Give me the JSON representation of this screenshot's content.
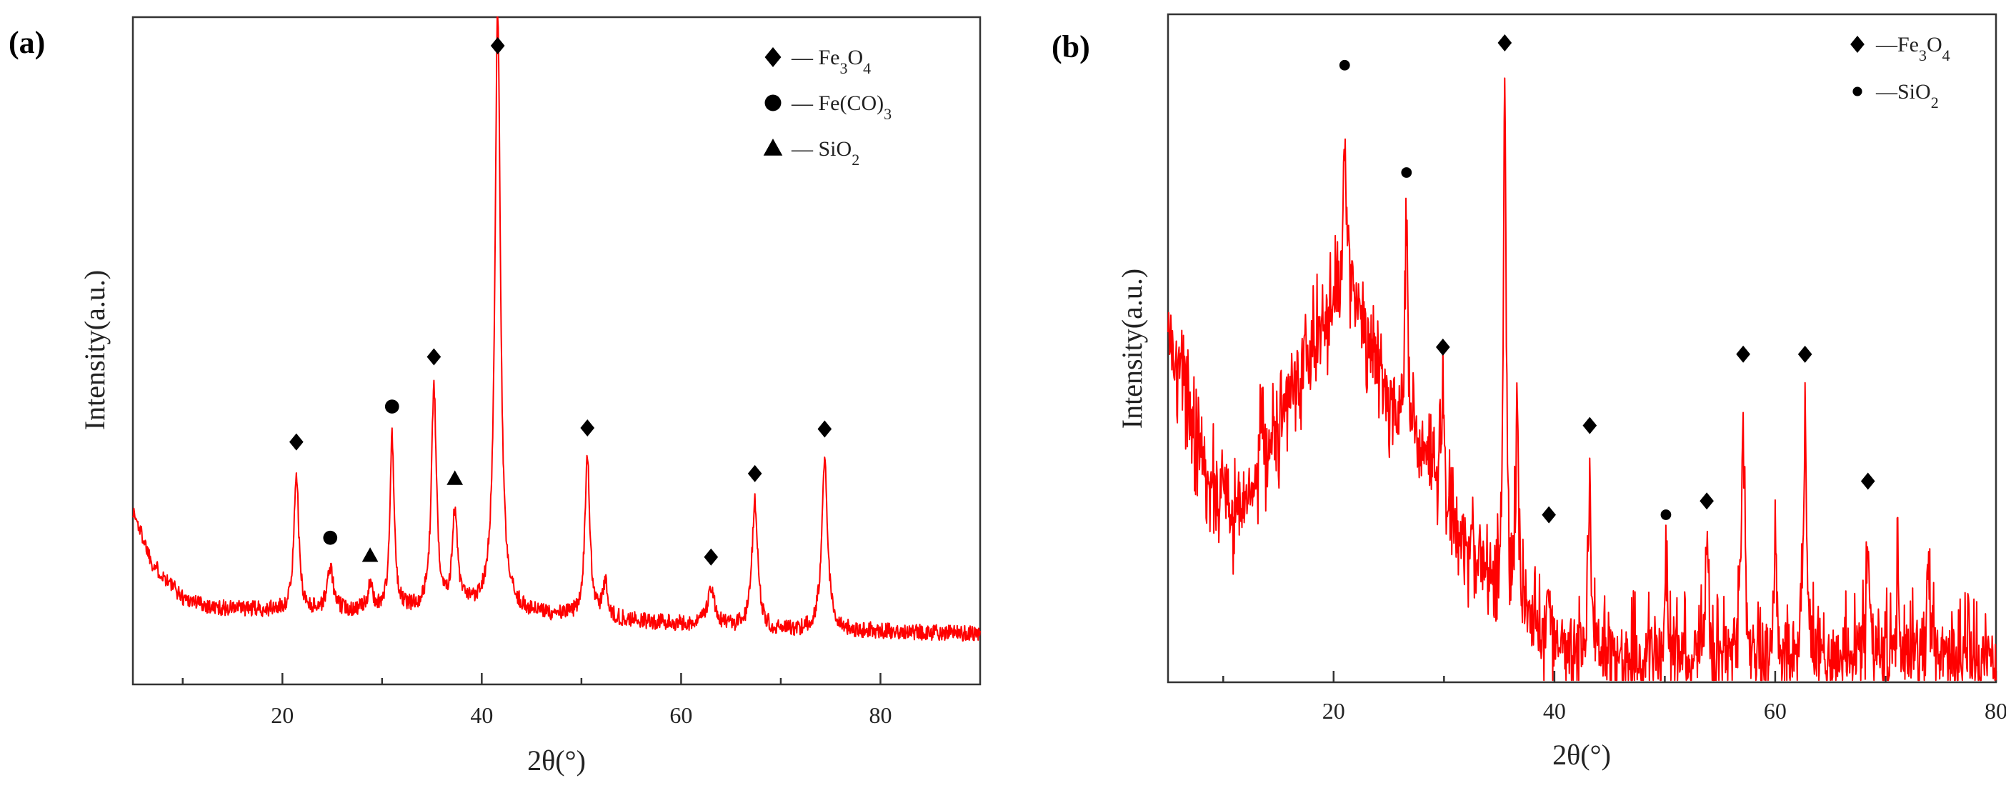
{
  "chart_data": [
    {
      "type": "line",
      "panel_label": "(a)",
      "title": "",
      "xlabel": "2θ(°)",
      "ylabel": "Intensity(a.u.)",
      "xlim": [
        5,
        90
      ],
      "ylim": [
        0,
        100
      ],
      "x_major_ticks": [
        20,
        40,
        60,
        80
      ],
      "x_minor_ticks": [
        10,
        30,
        50,
        70
      ],
      "y_ticks": [],
      "grid": false,
      "line_color": "#ff0000",
      "legend_position": "top-right",
      "legend": [
        {
          "marker": "diamond",
          "pre": "— Fe",
          "sub1": "3",
          "mid": "O",
          "sub2": "4",
          "post": ""
        },
        {
          "marker": "circle",
          "pre": "— Fe(CO)",
          "sub1": "3",
          "mid": "",
          "sub2": "",
          "post": ""
        },
        {
          "marker": "triangle",
          "pre": "— SiO",
          "sub1": "2",
          "mid": "",
          "sub2": "",
          "post": ""
        }
      ],
      "baseline": {
        "x": [
          5,
          7,
          10,
          13,
          20,
          30,
          40,
          45,
          50,
          60,
          70,
          80,
          90
        ],
        "y": [
          26,
          18,
          13,
          11.5,
          11,
          11,
          11.5,
          10.5,
          10,
          9,
          8,
          8,
          7.5
        ]
      },
      "peaks": [
        {
          "x": 21.4,
          "height": 21,
          "width": 0.28,
          "phase": "Fe3O4"
        },
        {
          "x": 24.8,
          "height": 6.5,
          "width": 0.35,
          "phase": "Fe(CO)3"
        },
        {
          "x": 28.8,
          "height": 3.5,
          "width": 0.3,
          "phase": "SiO2"
        },
        {
          "x": 31.0,
          "height": 26,
          "width": 0.25,
          "phase": "Fe(CO)3"
        },
        {
          "x": 35.2,
          "height": 33,
          "width": 0.3,
          "phase": "Fe3O4"
        },
        {
          "x": 37.3,
          "height": 14,
          "width": 0.3,
          "phase": "SiO2"
        },
        {
          "x": 41.6,
          "height": 90,
          "width": 0.32,
          "phase": "Fe3O4"
        },
        {
          "x": 50.6,
          "height": 24,
          "width": 0.3,
          "phase": "Fe3O4"
        },
        {
          "x": 52.4,
          "height": 5,
          "width": 0.3,
          "phase": ""
        },
        {
          "x": 63.0,
          "height": 6,
          "width": 0.4,
          "phase": "Fe3O4"
        },
        {
          "x": 67.4,
          "height": 19,
          "width": 0.35,
          "phase": "Fe3O4"
        },
        {
          "x": 74.4,
          "height": 26,
          "width": 0.35,
          "phase": "Fe3O4"
        }
      ],
      "peak_markers": [
        {
          "x": 21.4,
          "marker": "diamond",
          "phase": "Fe3O4"
        },
        {
          "x": 24.8,
          "marker": "circle",
          "phase": "Fe(CO)3"
        },
        {
          "x": 28.8,
          "marker": "triangle",
          "phase": "SiO2"
        },
        {
          "x": 31.0,
          "marker": "circle",
          "phase": "Fe(CO)3"
        },
        {
          "x": 35.2,
          "marker": "diamond",
          "phase": "Fe3O4"
        },
        {
          "x": 37.3,
          "marker": "triangle",
          "phase": "SiO2"
        },
        {
          "x": 41.6,
          "marker": "diamond",
          "phase": "Fe3O4"
        },
        {
          "x": 50.6,
          "marker": "diamond",
          "phase": "Fe3O4"
        },
        {
          "x": 63.0,
          "marker": "diamond",
          "phase": "Fe3O4"
        },
        {
          "x": 67.4,
          "marker": "diamond",
          "phase": "Fe3O4"
        },
        {
          "x": 74.4,
          "marker": "diamond",
          "phase": "Fe3O4"
        }
      ],
      "noise_amplitude": 1.2
    },
    {
      "type": "line",
      "panel_label": "(b)",
      "title": "",
      "xlabel": "2θ(°)",
      "ylabel": "Intensity(a.u.)",
      "xlim": [
        5,
        80
      ],
      "ylim": [
        0,
        100
      ],
      "x_major_ticks": [
        20,
        40,
        60,
        80
      ],
      "x_minor_ticks": [
        10,
        30,
        50,
        70
      ],
      "y_ticks": [],
      "grid": false,
      "line_color": "#ff0000",
      "legend_position": "top-right",
      "legend": [
        {
          "marker": "diamond",
          "pre": "—Fe",
          "sub1": "3",
          "mid": "O",
          "sub2": "4",
          "post": ""
        },
        {
          "marker": "circle",
          "pre": "—SiO",
          "sub1": "2",
          "mid": "",
          "sub2": "",
          "post": ""
        }
      ],
      "baseline": {
        "x": [
          5,
          7,
          9,
          11,
          14,
          17,
          20,
          21.5,
          23,
          25,
          28,
          31,
          34,
          37,
          40,
          45,
          50,
          60,
          70,
          80
        ],
        "y": [
          52,
          40,
          30,
          25,
          34,
          47,
          56,
          58,
          52,
          42,
          33,
          22,
          16,
          10,
          5,
          4,
          4,
          4,
          4,
          4
        ]
      },
      "peaks": [
        {
          "x": 13.5,
          "height": 8,
          "width": 0.15,
          "phase": ""
        },
        {
          "x": 21.0,
          "height": 26,
          "width": 0.18,
          "phase": "SiO2"
        },
        {
          "x": 26.6,
          "height": 30,
          "width": 0.15,
          "phase": "SiO2"
        },
        {
          "x": 29.9,
          "height": 15,
          "width": 0.2,
          "phase": "Fe3O4"
        },
        {
          "x": 35.5,
          "height": 78,
          "width": 0.14,
          "phase": "Fe3O4"
        },
        {
          "x": 36.6,
          "height": 32,
          "width": 0.14,
          "phase": ""
        },
        {
          "x": 39.5,
          "height": 10,
          "width": 0.14,
          "phase": "Fe3O4"
        },
        {
          "x": 43.2,
          "height": 25,
          "width": 0.16,
          "phase": "Fe3O4"
        },
        {
          "x": 50.1,
          "height": 12,
          "width": 0.14,
          "phase": "SiO2"
        },
        {
          "x": 53.8,
          "height": 14,
          "width": 0.16,
          "phase": "Fe3O4"
        },
        {
          "x": 57.1,
          "height": 36,
          "width": 0.16,
          "phase": "Fe3O4"
        },
        {
          "x": 60.0,
          "height": 17,
          "width": 0.14,
          "phase": ""
        },
        {
          "x": 62.7,
          "height": 36,
          "width": 0.16,
          "phase": "Fe3O4"
        },
        {
          "x": 68.4,
          "height": 17,
          "width": 0.16,
          "phase": "Fe3O4"
        },
        {
          "x": 71.1,
          "height": 14,
          "width": 0.16,
          "phase": ""
        },
        {
          "x": 73.9,
          "height": 13,
          "width": 0.22,
          "phase": ""
        }
      ],
      "peak_markers": [
        {
          "x": 21.0,
          "marker": "circle",
          "phase": "SiO2"
        },
        {
          "x": 26.6,
          "marker": "circle",
          "phase": "SiO2"
        },
        {
          "x": 29.9,
          "marker": "diamond",
          "phase": "Fe3O4"
        },
        {
          "x": 35.5,
          "marker": "diamond",
          "phase": "Fe3O4"
        },
        {
          "x": 39.5,
          "marker": "diamond",
          "phase": "Fe3O4"
        },
        {
          "x": 43.2,
          "marker": "diamond",
          "phase": "Fe3O4"
        },
        {
          "x": 50.1,
          "marker": "circle",
          "phase": "SiO2"
        },
        {
          "x": 53.8,
          "marker": "diamond",
          "phase": "Fe3O4"
        },
        {
          "x": 57.1,
          "marker": "diamond",
          "phase": "Fe3O4"
        },
        {
          "x": 62.7,
          "marker": "diamond",
          "phase": "Fe3O4"
        },
        {
          "x": 68.4,
          "marker": "diamond",
          "phase": "Fe3O4"
        }
      ],
      "noise_amplitude": 6
    }
  ]
}
